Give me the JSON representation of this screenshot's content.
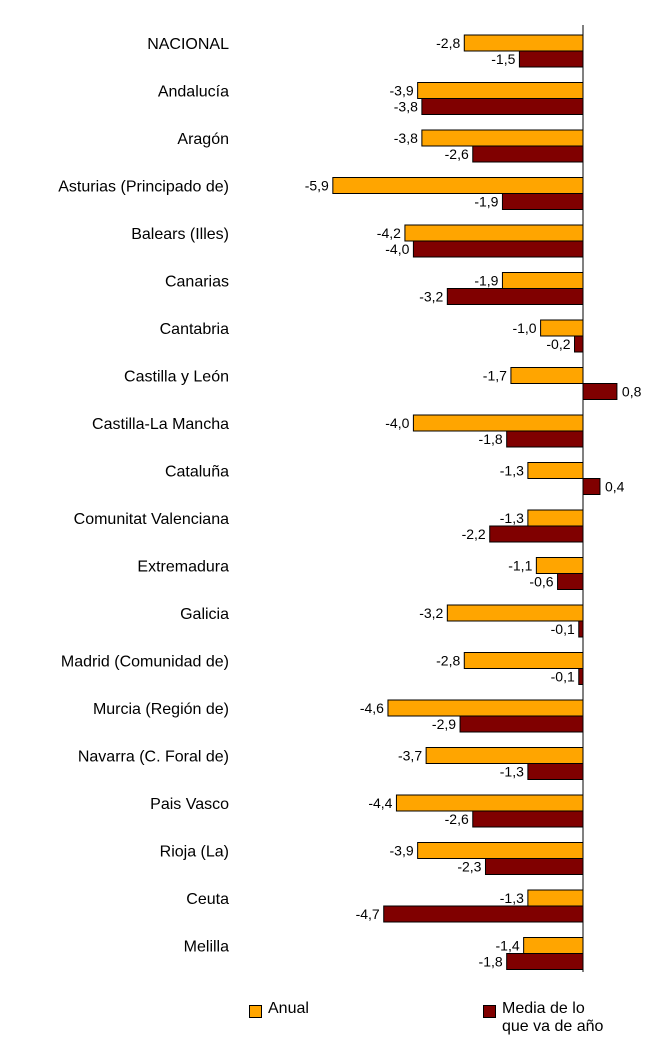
{
  "chart_data": {
    "type": "bar",
    "orientation": "horizontal",
    "categories": [
      "NACIONAL",
      "Andalucía",
      "Aragón",
      "Asturias (Principado de)",
      "Balears (Illes)",
      "Canarias",
      "Cantabria",
      "Castilla y León",
      "Castilla-La Mancha",
      "Cataluña",
      "Comunitat Valenciana",
      "Extremadura",
      "Galicia",
      "Madrid (Comunidad de)",
      "Murcia (Región de)",
      "Navarra (C. Foral de)",
      "Pais Vasco",
      "Rioja (La)",
      "Ceuta",
      "Melilla"
    ],
    "series": [
      {
        "name": "Anual",
        "color": "#FFA500",
        "values": [
          -2.8,
          -3.9,
          -3.8,
          -5.9,
          -4.2,
          -1.9,
          -1.0,
          -1.7,
          -4.0,
          -1.3,
          -1.3,
          -1.1,
          -3.2,
          -2.8,
          -4.6,
          -3.7,
          -4.4,
          -3.9,
          -1.3,
          -1.4
        ],
        "labels": [
          "-2,8",
          "-3,9",
          "-3,8",
          "-5,9",
          "-4,2",
          "-1,9",
          "-1,0",
          "-1,7",
          "-4,0",
          "-1,3",
          "-1,3",
          "-1,1",
          "-3,2",
          "-2,8",
          "-4,6",
          "-3,7",
          "-4,4",
          "-3,9",
          "-1,3",
          "-1,4"
        ]
      },
      {
        "name": "Media de lo que va de año",
        "color": "#800000",
        "values": [
          -1.5,
          -3.8,
          -2.6,
          -1.9,
          -4.0,
          -3.2,
          -0.2,
          0.8,
          -1.8,
          0.4,
          -2.2,
          -0.6,
          -0.1,
          -0.1,
          -2.9,
          -1.3,
          -2.6,
          -2.3,
          -4.7,
          -1.8
        ],
        "labels": [
          "-1,5",
          "-3,8",
          "-2,6",
          "-1,9",
          "-4,0",
          "-3,2",
          "-0,2",
          "0,8",
          "-1,8",
          "0,4",
          "-2,2",
          "-0,6",
          "-0,1",
          "-0,1",
          "-2,9",
          "-1,3",
          "-2,6",
          "-2,3",
          "-4,7",
          "-1,8"
        ]
      }
    ],
    "xlim": [
      -6.5,
      1.5
    ],
    "grid": false,
    "legend_position": "bottom"
  },
  "legend": {
    "item1": "Anual",
    "item2": "Media de lo\nque va de año"
  }
}
